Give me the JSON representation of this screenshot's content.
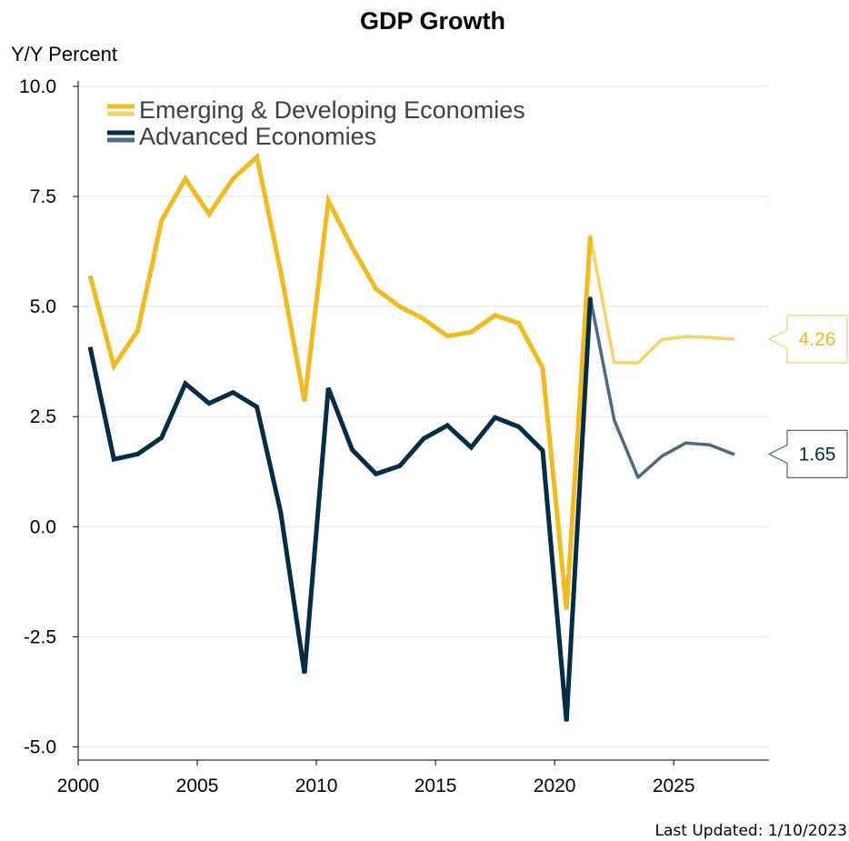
{
  "chart_data": {
    "type": "line",
    "title": "GDP Growth",
    "ylabel": "Y/Y Percent",
    "xlabel": "",
    "xlim": [
      2000,
      2029
    ],
    "ylim": [
      -5.3,
      10.0
    ],
    "x_ticks": [
      2000,
      2005,
      2010,
      2015,
      2020,
      2025
    ],
    "x_tick_labels": [
      "2000",
      "2005",
      "2010",
      "2015",
      "2020",
      "2025"
    ],
    "y_ticks": [
      10.0,
      7.5,
      5.0,
      2.5,
      0.0,
      -2.5,
      -5.0
    ],
    "y_tick_labels": [
      "10.0",
      "7.5",
      "5.0",
      "2.5",
      "0.0",
      "-2.5",
      "-5.0"
    ],
    "grid": "horizontal",
    "legend_position": "top-left",
    "forecast_start": 2021.5,
    "series": [
      {
        "name": "Emerging & Developing Economies",
        "color": "#F2BB1D",
        "forecast_color": "#F5D26A",
        "x": [
          2000.5,
          2001.5,
          2002.5,
          2003.5,
          2004.5,
          2005.5,
          2006.5,
          2007.5,
          2008.5,
          2009.5,
          2010.5,
          2011.5,
          2012.5,
          2013.5,
          2014.5,
          2015.5,
          2016.5,
          2017.5,
          2018.5,
          2019.5,
          2020.5,
          2021.5,
          2022.5,
          2023.5,
          2024.5,
          2025.5,
          2026.5,
          2027.5
        ],
        "values": [
          5.7,
          3.65,
          4.45,
          6.95,
          7.9,
          7.1,
          7.9,
          8.4,
          5.8,
          2.85,
          7.4,
          6.35,
          5.4,
          5.0,
          4.72,
          4.33,
          4.42,
          4.8,
          4.62,
          3.6,
          -1.88,
          6.6,
          3.73,
          3.72,
          4.25,
          4.32,
          4.3,
          4.26
        ],
        "last_value_label": "4.26"
      },
      {
        "name": "Advanced Economies",
        "color": "#032C46",
        "forecast_color": "#4C6A82",
        "x": [
          2000.5,
          2001.5,
          2002.5,
          2003.5,
          2004.5,
          2005.5,
          2006.5,
          2007.5,
          2008.5,
          2009.5,
          2010.5,
          2011.5,
          2012.5,
          2013.5,
          2014.5,
          2015.5,
          2016.5,
          2017.5,
          2018.5,
          2019.5,
          2020.5,
          2021.5,
          2022.5,
          2023.5,
          2024.5,
          2025.5,
          2026.5,
          2027.5
        ],
        "values": [
          4.08,
          1.53,
          1.65,
          2.02,
          3.25,
          2.8,
          3.05,
          2.72,
          0.33,
          -3.33,
          3.15,
          1.75,
          1.2,
          1.38,
          2.0,
          2.3,
          1.8,
          2.48,
          2.27,
          1.73,
          -4.42,
          5.2,
          2.42,
          1.12,
          1.6,
          1.9,
          1.86,
          1.65
        ],
        "last_value_label": "1.65"
      }
    ]
  },
  "footer": {
    "last_updated": "Last Updated: 1/10/2023"
  }
}
